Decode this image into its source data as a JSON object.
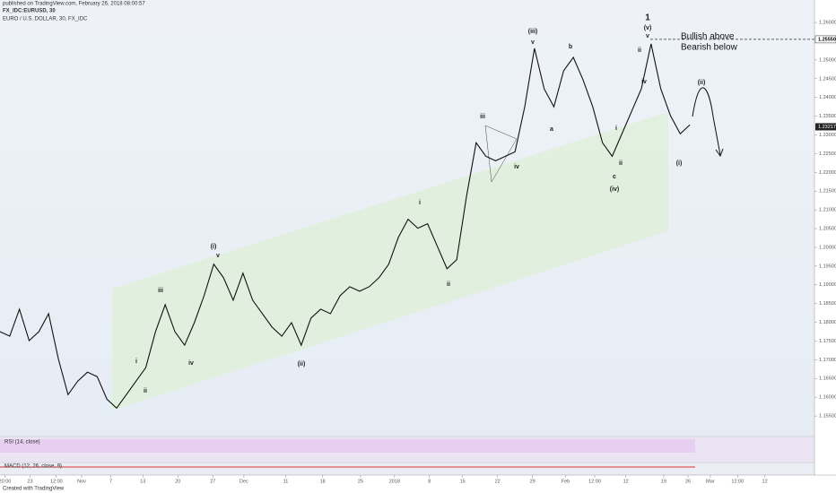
{
  "chart_data": {
    "type": "line",
    "title": "EURO / U.S. DOLLAR, 30, FX_IDC",
    "subtitle": "published on TradingView.com, February 26, 2018 08:00:57",
    "symbol": "FX_IDC:EURUSD, 30",
    "footer": "Created with TradingView",
    "indicators": [
      "RSI (14, close)",
      "MACD (12, 26, close, 9)"
    ],
    "series": [
      {
        "name": "EURUSD",
        "color": "#111111",
        "values": [
          1.1775,
          1.1763,
          1.1835,
          1.1751,
          1.1775,
          1.1823,
          1.1703,
          1.1607,
          1.1643,
          1.1667,
          1.1655,
          1.1595,
          1.1571,
          1.1607,
          1.1643,
          1.1679,
          1.1775,
          1.1847,
          1.1775,
          1.1739,
          1.1799,
          1.1871,
          1.1955,
          1.1919,
          1.1859,
          1.1931,
          1.1859,
          1.1823,
          1.1787,
          1.1763,
          1.1799,
          1.1739,
          1.1811,
          1.1835,
          1.1823,
          1.1871,
          1.1895,
          1.1883,
          1.1895,
          1.1919,
          1.1955,
          1.2027,
          1.2075,
          1.2051,
          1.2063,
          1.2003,
          1.1943,
          1.1967,
          1.2135,
          1.2279,
          1.2243,
          1.2231,
          1.2243,
          1.2255,
          1.2375,
          1.2531,
          1.2423,
          1.2375,
          1.2471,
          1.2507,
          1.2447,
          1.2375,
          1.2279,
          1.2243,
          1.2303,
          1.2363,
          1.2423,
          1.2543,
          1.2423,
          1.2351,
          1.2303,
          1.2327
        ]
      }
    ],
    "last_price": 1.23217,
    "level": {
      "value": 1.2555,
      "label": "1.25550"
    },
    "xlim": [
      0,
      84
    ],
    "ylim": [
      1.15,
      1.266
    ],
    "xticks": [
      {
        "value": 0.5,
        "label": "20:00"
      },
      {
        "value": 3.1,
        "label": "23"
      },
      {
        "value": 5.8,
        "label": "12:00"
      },
      {
        "value": 8.4,
        "label": "Nov"
      },
      {
        "value": 11.4,
        "label": "7"
      },
      {
        "value": 14.7,
        "label": "13"
      },
      {
        "value": 18.3,
        "label": "20"
      },
      {
        "value": 21.9,
        "label": "27"
      },
      {
        "value": 25.1,
        "label": "Dec"
      },
      {
        "value": 29.4,
        "label": "11"
      },
      {
        "value": 33.2,
        "label": "18"
      },
      {
        "value": 37.1,
        "label": "25"
      },
      {
        "value": 40.6,
        "label": "2018"
      },
      {
        "value": 44.2,
        "label": "8"
      },
      {
        "value": 47.6,
        "label": "15"
      },
      {
        "value": 51.2,
        "label": "22"
      },
      {
        "value": 54.8,
        "label": "29"
      },
      {
        "value": 58.2,
        "label": "Feb"
      },
      {
        "value": 61.2,
        "label": "12:00"
      },
      {
        "value": 64.4,
        "label": "12"
      },
      {
        "value": 68.3,
        "label": "19"
      },
      {
        "value": 70.8,
        "label": "26"
      },
      {
        "value": 73.1,
        "label": "Mar"
      },
      {
        "value": 75.9,
        "label": "12:00"
      },
      {
        "value": 78.7,
        "label": "12"
      }
    ],
    "yticks": [
      {
        "value": 1.155,
        "label": "1.15500"
      },
      {
        "value": 1.16,
        "label": "1.16000"
      },
      {
        "value": 1.165,
        "label": "1.16500"
      },
      {
        "value": 1.17,
        "label": "1.17000"
      },
      {
        "value": 1.175,
        "label": "1.17500"
      },
      {
        "value": 1.18,
        "label": "1.18000"
      },
      {
        "value": 1.185,
        "label": "1.18500"
      },
      {
        "value": 1.19,
        "label": "1.19000"
      },
      {
        "value": 1.195,
        "label": "1.19500"
      },
      {
        "value": 1.2,
        "label": "1.20000"
      },
      {
        "value": 1.205,
        "label": "1.20500"
      },
      {
        "value": 1.21,
        "label": "1.21000"
      },
      {
        "value": 1.215,
        "label": "1.21500"
      },
      {
        "value": 1.22,
        "label": "1.22000"
      },
      {
        "value": 1.225,
        "label": "1.22500"
      },
      {
        "value": 1.23,
        "label": "1.23000"
      },
      {
        "value": 1.235,
        "label": "1.23500"
      },
      {
        "value": 1.24,
        "label": "1.24000"
      },
      {
        "value": 1.245,
        "label": "1.24500"
      },
      {
        "value": 1.25,
        "label": "1.25000"
      },
      {
        "value": 1.26,
        "label": "1.26000"
      }
    ],
    "annotations": [
      "1",
      "(v)",
      "v",
      "(iii)",
      "v",
      "b",
      "a",
      "iii",
      "iv",
      "ii",
      "iv",
      "i",
      "ii",
      "c",
      "(iv)",
      "(i)",
      "(ii)",
      "i",
      "ii",
      "(i)",
      "v",
      "iii",
      "iv",
      "i",
      "ii",
      "(ii)",
      "Bullish above",
      "Bearish below"
    ]
  }
}
